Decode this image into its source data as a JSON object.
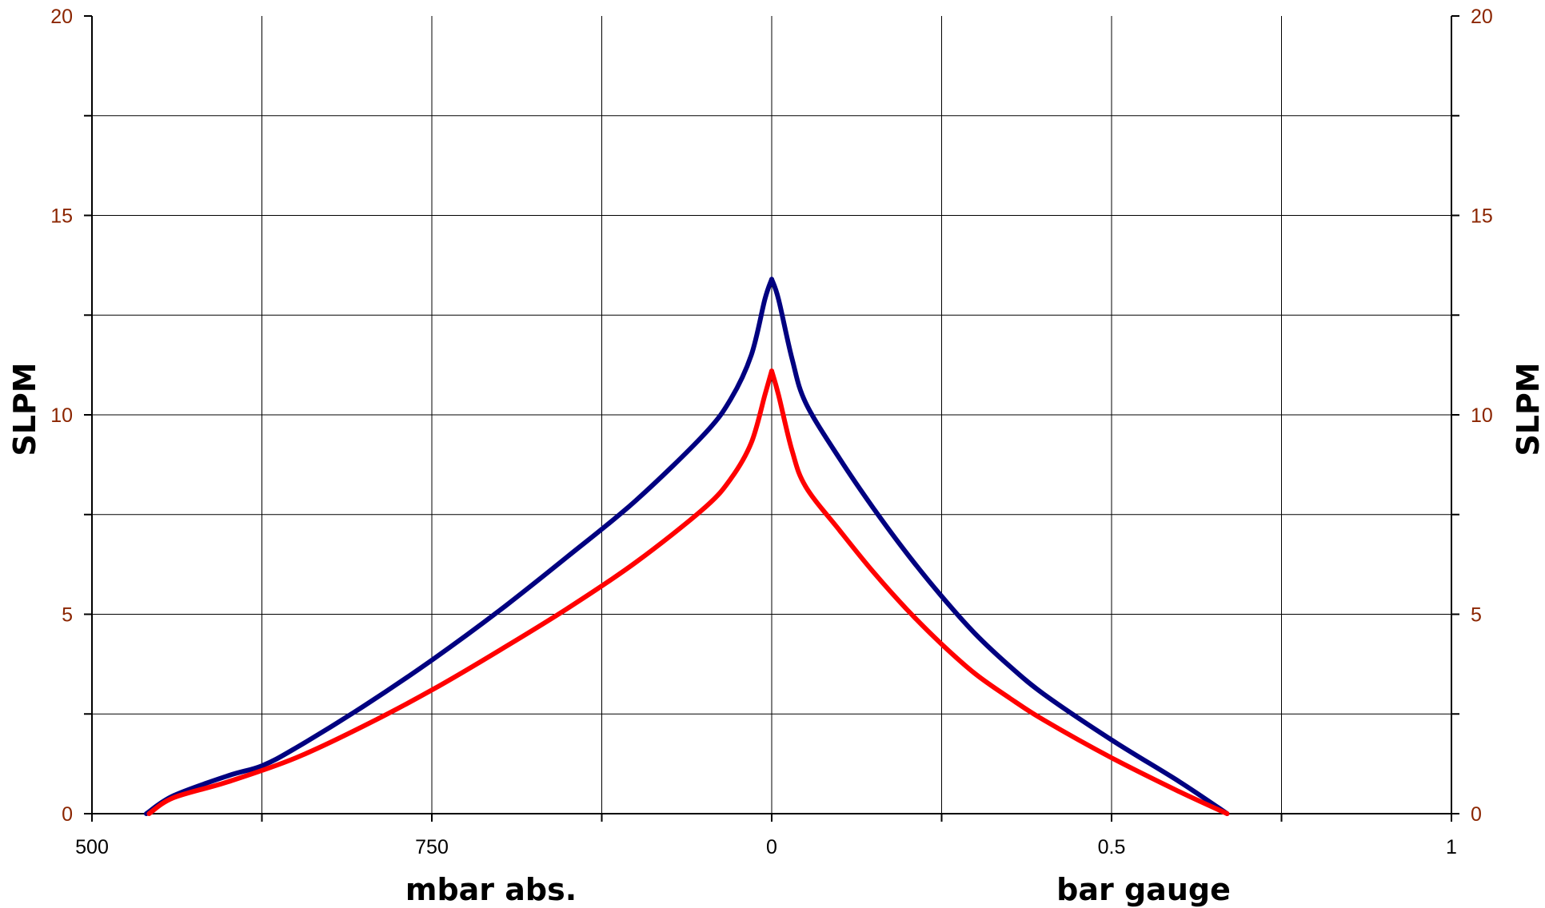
{
  "chart_data": {
    "type": "line",
    "y_left": {
      "label": "SLPM",
      "range": [
        0,
        20
      ],
      "ticks": [
        "0",
        "5",
        "10",
        "15",
        "20"
      ]
    },
    "y_right": {
      "label": "SLPM",
      "range": [
        0,
        20
      ],
      "ticks": [
        "0",
        "5",
        "10",
        "15",
        "20"
      ]
    },
    "x_left": {
      "label": "mbar abs.",
      "unit": "mbar",
      "range": [
        500,
        1000
      ],
      "ticks": [
        "500",
        "750"
      ]
    },
    "x_right": {
      "label": "bar gauge",
      "unit": "bar",
      "range": [
        0,
        1
      ],
      "ticks": [
        "0",
        "0.5",
        "1"
      ]
    },
    "grid": true,
    "series": [
      {
        "color": "#000080",
        "vacuum_side": [
          {
            "mbar": 540,
            "slpm": 0.0
          },
          {
            "mbar": 560,
            "slpm": 0.45
          },
          {
            "mbar": 600,
            "slpm": 0.95
          },
          {
            "mbar": 625,
            "slpm": 1.2
          },
          {
            "mbar": 650,
            "slpm": 1.65
          },
          {
            "mbar": 700,
            "slpm": 2.7
          },
          {
            "mbar": 750,
            "slpm": 3.85
          },
          {
            "mbar": 800,
            "slpm": 5.1
          },
          {
            "mbar": 850,
            "slpm": 6.45
          },
          {
            "mbar": 900,
            "slpm": 7.85
          },
          {
            "mbar": 950,
            "slpm": 9.5
          },
          {
            "mbar": 970,
            "slpm": 10.4
          },
          {
            "mbar": 985,
            "slpm": 11.5
          },
          {
            "mbar": 995,
            "slpm": 12.9
          },
          {
            "mbar": 1000,
            "slpm": 13.4
          }
        ],
        "pressure_side": [
          {
            "bar": 0.0,
            "slpm": 13.4
          },
          {
            "bar": 0.01,
            "slpm": 12.9
          },
          {
            "bar": 0.03,
            "slpm": 11.4
          },
          {
            "bar": 0.05,
            "slpm": 10.3
          },
          {
            "bar": 0.1,
            "slpm": 8.9
          },
          {
            "bar": 0.15,
            "slpm": 7.65
          },
          {
            "bar": 0.2,
            "slpm": 6.5
          },
          {
            "bar": 0.25,
            "slpm": 5.45
          },
          {
            "bar": 0.3,
            "slpm": 4.5
          },
          {
            "bar": 0.35,
            "slpm": 3.7
          },
          {
            "bar": 0.4,
            "slpm": 3.0
          },
          {
            "bar": 0.5,
            "slpm": 1.85
          },
          {
            "bar": 0.6,
            "slpm": 0.8
          },
          {
            "bar": 0.67,
            "slpm": 0.0
          }
        ]
      },
      {
        "color": "#ff0000",
        "vacuum_side": [
          {
            "mbar": 542,
            "slpm": 0.0
          },
          {
            "mbar": 560,
            "slpm": 0.4
          },
          {
            "mbar": 600,
            "slpm": 0.8
          },
          {
            "mbar": 650,
            "slpm": 1.4
          },
          {
            "mbar": 700,
            "slpm": 2.2
          },
          {
            "mbar": 750,
            "slpm": 3.1
          },
          {
            "mbar": 800,
            "slpm": 4.1
          },
          {
            "mbar": 850,
            "slpm": 5.15
          },
          {
            "mbar": 900,
            "slpm": 6.3
          },
          {
            "mbar": 950,
            "slpm": 7.65
          },
          {
            "mbar": 970,
            "slpm": 8.4
          },
          {
            "mbar": 985,
            "slpm": 9.3
          },
          {
            "mbar": 995,
            "slpm": 10.5
          },
          {
            "mbar": 1000,
            "slpm": 11.1
          }
        ],
        "pressure_side": [
          {
            "bar": 0.0,
            "slpm": 11.1
          },
          {
            "bar": 0.01,
            "slpm": 10.5
          },
          {
            "bar": 0.03,
            "slpm": 9.1
          },
          {
            "bar": 0.05,
            "slpm": 8.2
          },
          {
            "bar": 0.1,
            "slpm": 7.1
          },
          {
            "bar": 0.15,
            "slpm": 6.05
          },
          {
            "bar": 0.2,
            "slpm": 5.1
          },
          {
            "bar": 0.25,
            "slpm": 4.25
          },
          {
            "bar": 0.3,
            "slpm": 3.5
          },
          {
            "bar": 0.35,
            "slpm": 2.9
          },
          {
            "bar": 0.4,
            "slpm": 2.35
          },
          {
            "bar": 0.5,
            "slpm": 1.4
          },
          {
            "bar": 0.6,
            "slpm": 0.55
          },
          {
            "bar": 0.67,
            "slpm": 0.0
          }
        ]
      }
    ]
  }
}
